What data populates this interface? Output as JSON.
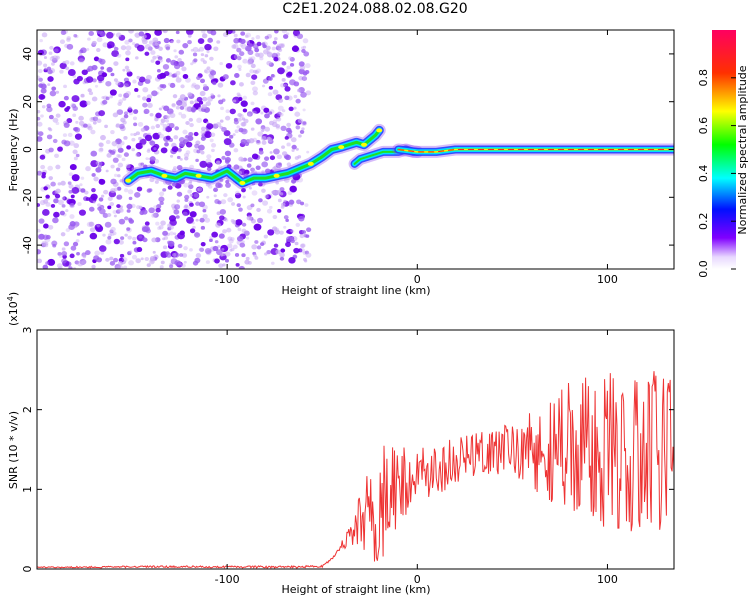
{
  "title": "C2E1.2024.088.02.08.G20",
  "colors": {
    "snr_line": "#ee3333",
    "ridge_core": "#ff2020",
    "speckle_dark": "#6a00e8",
    "speckle_light": "#c8a8f4"
  },
  "colorbar": {
    "label": "Normalized spectral amplitude",
    "ticks": [
      "0.0",
      "0.2",
      "0.4",
      "0.6",
      "0.8"
    ],
    "tick_values": [
      0.0,
      0.2,
      0.4,
      0.6,
      0.8
    ],
    "range": [
      0,
      1
    ],
    "colormap": "rainbow (magenta-blue-cyan-green-yellow-red)"
  },
  "chart_data": [
    {
      "type": "heatmap",
      "title": "C2E1.2024.088.02.08.G20",
      "xlabel": "Height of straight line (km)",
      "ylabel": "Frequency (Hz)",
      "xlim": [
        -200,
        135
      ],
      "ylim": [
        -50,
        50
      ],
      "xticks": [
        -100,
        0,
        100
      ],
      "xtick_labels": [
        "-100",
        "0",
        "100"
      ],
      "yticks": [
        -40,
        -20,
        0,
        20,
        40
      ],
      "ytick_labels": [
        "-40",
        "-20",
        "0",
        "20",
        "40"
      ],
      "noise_region_x": [
        -200,
        -57
      ],
      "ridge": {
        "x": [
          -152,
          -147,
          -140,
          -133,
          -127,
          -122,
          -115,
          -108,
          -100,
          -92,
          -86,
          -80,
          -74,
          -68,
          -62,
          -56,
          -50,
          -45,
          -40,
          -36,
          -32,
          -28,
          -25,
          -22,
          -20
        ],
        "y": [
          -13,
          -10,
          -9,
          -11,
          -12,
          -10,
          -11,
          -12,
          -9,
          -14,
          -12,
          -12,
          -11,
          -10,
          -8,
          -6,
          -3,
          0,
          1,
          2,
          3,
          2,
          4,
          6,
          8
        ]
      },
      "branch": {
        "x": [
          -33,
          -30,
          -26,
          -22,
          -18,
          -14,
          -10,
          -6,
          -2,
          0
        ],
        "y": [
          -6,
          -4,
          -3,
          -2,
          -1,
          -1,
          -1,
          0,
          -1,
          -1
        ]
      },
      "carrier": {
        "x": [
          -10,
          0,
          10,
          20,
          30,
          40,
          50,
          60,
          70,
          80,
          90,
          100,
          110,
          120,
          130,
          135
        ],
        "y": [
          0,
          -1,
          -1,
          0,
          0,
          0,
          0,
          0,
          0,
          0,
          0,
          0,
          0,
          0,
          0,
          0
        ]
      }
    },
    {
      "type": "line",
      "xlabel": "Height of straight line (km)",
      "ylabel": "SNR (10 * v/v)",
      "scale_label": "(x10",
      "scale_exponent": "4",
      "scale_close": ")",
      "xlim": [
        -200,
        135
      ],
      "ylim": [
        0,
        30000
      ],
      "xticks": [
        -100,
        0,
        100
      ],
      "xtick_labels": [
        "-100",
        "0",
        "100"
      ],
      "yticks": [
        0,
        10000,
        20000,
        30000
      ],
      "ytick_labels": [
        "0",
        "1",
        "2",
        "3"
      ],
      "series": [
        {
          "envelope_x": [
            -200,
            -140,
            -80,
            -50,
            -44,
            -40,
            -35,
            -30,
            -25,
            -20,
            -15,
            -10,
            -5,
            0,
            10,
            20,
            30,
            40,
            50,
            60,
            70,
            80,
            90,
            100,
            110,
            120,
            130,
            135
          ],
          "envelope_y": [
            200,
            300,
            250,
            300,
            1500,
            3000,
            4000,
            6000,
            7500,
            9000,
            10000,
            10500,
            11000,
            11500,
            12500,
            13500,
            14500,
            15000,
            15000,
            15000,
            15000,
            15000,
            15000,
            15000,
            15000,
            15000,
            15000,
            15000
          ],
          "spread_x": [
            -200,
            -44,
            -40,
            -35,
            -25,
            -20,
            -10,
            0,
            20,
            40,
            60,
            80,
            100,
            120,
            135
          ],
          "spread_y": [
            80,
            150,
            500,
            1500,
            6000,
            9000,
            5000,
            3500,
            3000,
            3200,
            5000,
            9000,
            10000,
            11000,
            10000
          ]
        }
      ]
    }
  ]
}
